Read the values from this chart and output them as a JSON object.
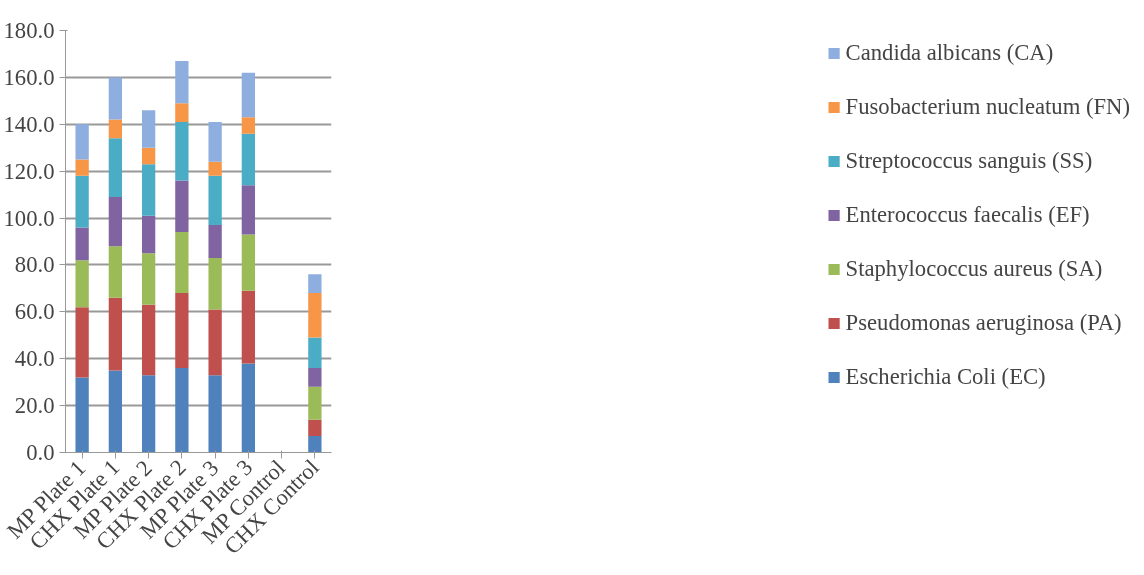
{
  "chart_data": {
    "type": "bar",
    "stacked": true,
    "categories": [
      "MP Plate 1",
      "CHX Plate 1",
      "MP Plate 2",
      "CHX Plate 2",
      "MP Plate 3",
      "CHX Plate 3",
      "MP Control",
      "CHX Control"
    ],
    "series": [
      {
        "name": "Escherichia Coli (EC)",
        "color": "#4f81bd",
        "values": [
          32,
          35,
          33,
          36,
          33,
          38,
          0,
          7
        ]
      },
      {
        "name": "Pseudomonas aeruginosa (PA)",
        "color": "#c0504d",
        "values": [
          30,
          31,
          30,
          32,
          28,
          31,
          0,
          7
        ]
      },
      {
        "name": "Staphylococcus aureus (SA)",
        "color": "#9bbb59",
        "values": [
          20,
          22,
          22,
          26,
          22,
          24,
          0,
          14
        ]
      },
      {
        "name": "Enterococcus faecalis (EF)",
        "color": "#8064a2",
        "values": [
          14,
          21,
          16,
          22,
          14,
          21,
          0,
          8
        ]
      },
      {
        "name": "Streptococcus sanguis (SS)",
        "color": "#4bacc6",
        "values": [
          22,
          25,
          22,
          25,
          21,
          22,
          0,
          13
        ]
      },
      {
        "name": "Fusobacterium nucleatum (FN)",
        "color": "#f79646",
        "values": [
          7,
          8,
          7,
          8,
          6,
          7,
          0,
          19
        ]
      },
      {
        "name": "Candida albicans (CA)",
        "color": "#8eaee0",
        "values": [
          15,
          18,
          16,
          18,
          17,
          19,
          0,
          8
        ]
      }
    ],
    "ylim": [
      0,
      180
    ],
    "yticks": [
      {
        "value": 0,
        "label": "0.0"
      },
      {
        "value": 20,
        "label": "20.0"
      },
      {
        "value": 40,
        "label": "40.0"
      },
      {
        "value": 60,
        "label": "60.0"
      },
      {
        "value": 80,
        "label": "80.0"
      },
      {
        "value": 100,
        "label": "100.0"
      },
      {
        "value": 120,
        "label": "120.0"
      },
      {
        "value": 140,
        "label": "140.0"
      },
      {
        "value": 160,
        "label": "160.0"
      },
      {
        "value": 180,
        "label": "180.0"
      }
    ],
    "grid": "y",
    "legend": "right"
  }
}
